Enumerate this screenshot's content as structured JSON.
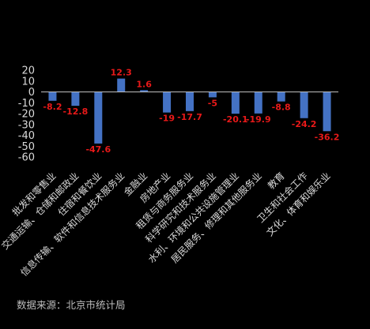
{
  "chart_data": {
    "type": "bar",
    "categories": [
      "批发和零售业",
      "交通运输、仓储和邮政业",
      "住宿和餐饮业",
      "信息传输、软件和信息技术服务业",
      "金融业",
      "房地产业",
      "租赁与商务服务业",
      "科学研究和技术服务业",
      "水利、环境和公共设施管理业",
      "居民服务、修理和其他服务业",
      "教育",
      "卫生和社会工作",
      "文化、体育和娱乐业"
    ],
    "values": [
      -8.2,
      -12.8,
      -47.6,
      12.3,
      1.6,
      -19,
      -17.7,
      -5,
      -20.1,
      -19.9,
      -8.8,
      -24.2,
      -36.2
    ],
    "data_labels": [
      "-8.2",
      "-12.8",
      "-47.6",
      "12.3",
      "1.6",
      "-19",
      "-17.7",
      "-5",
      "-20.1",
      "-19.9",
      "-8.8",
      "-24.2",
      "-36.2"
    ],
    "y_ticks": [
      "20",
      "10",
      "0",
      "-10",
      "-20",
      "-30",
      "-40",
      "-50",
      "-60"
    ],
    "ylim": [
      -60,
      20
    ],
    "grid": false,
    "colors": {
      "bar": "#4472c4",
      "label": "#e81919",
      "axis_text": "#d9d9d9",
      "background": "#000000"
    }
  },
  "source_note": "数据来源：北京市统计局"
}
